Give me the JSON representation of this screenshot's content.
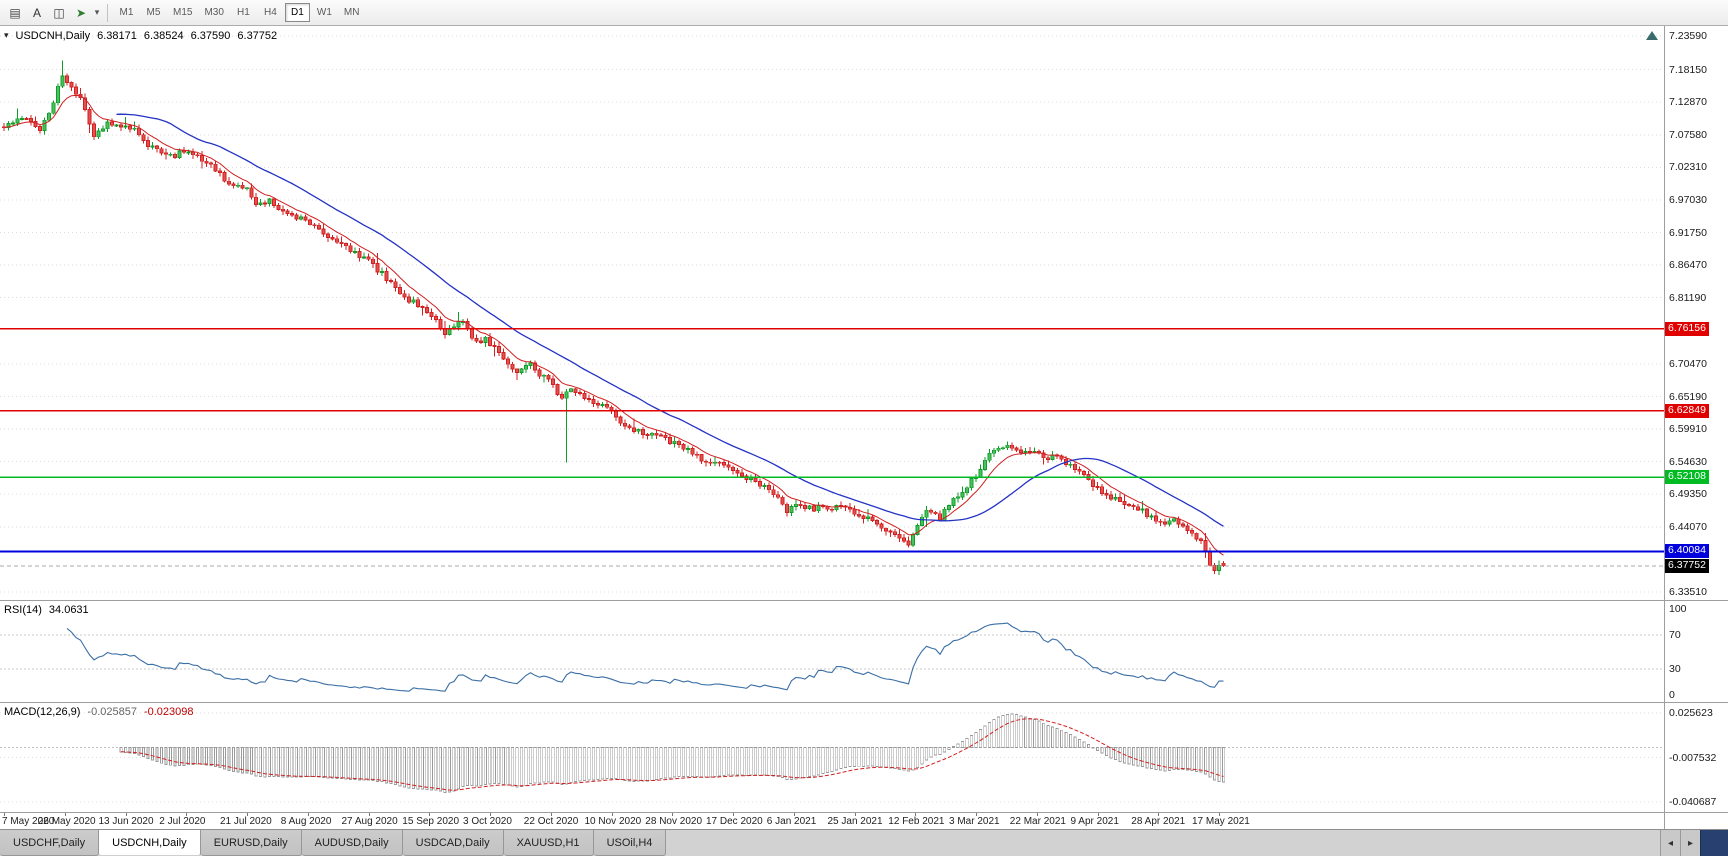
{
  "toolbar": {
    "icons": [
      {
        "name": "chart-list-icon",
        "glyph": "▤",
        "color": "#444444"
      },
      {
        "name": "text-tool-icon",
        "glyph": "A",
        "color": "#333333"
      },
      {
        "name": "template-icon",
        "glyph": "◫",
        "color": "#444444"
      },
      {
        "name": "cursor-tool-icon",
        "glyph": "➤",
        "color": "#2e7d32"
      }
    ],
    "dropdown_caret": "▾",
    "timeframes": [
      "M1",
      "M5",
      "M15",
      "M30",
      "H1",
      "H4",
      "D1",
      "W1",
      "MN"
    ],
    "active_timeframe": "D1"
  },
  "legend": {
    "caret": "▾",
    "symbol": "USDCNH,Daily",
    "open": "6.38171",
    "high": "6.38524",
    "low": "6.37590",
    "close": "6.37752"
  },
  "chart_data": {
    "type": "candlestick",
    "symbol": "USDCNH",
    "period": "Daily",
    "ylim": [
      6.3351,
      7.2359
    ],
    "y_ticks": [
      7.2359,
      7.1815,
      7.1287,
      7.0758,
      7.0231,
      6.9703,
      6.9175,
      6.8647,
      6.8119,
      6.7047,
      6.6519,
      6.5991,
      6.5463,
      6.4935,
      6.4407,
      6.3351
    ],
    "x_labels": [
      "7 May 2020",
      "26 May 2020",
      "13 Jun 2020",
      "2 Jul 2020",
      "21 Jul 2020",
      "8 Aug 2020",
      "27 Aug 2020",
      "15 Sep 2020",
      "3 Oct 2020",
      "22 Oct 2020",
      "10 Nov 2020",
      "28 Nov 2020",
      "17 Dec 2020",
      "6 Jan 2021",
      "25 Jan 2021",
      "12 Feb 2021",
      "3 Mar 2021",
      "22 Mar 2021",
      "9 Apr 2021",
      "28 Apr 2021",
      "17 May 2021"
    ],
    "num_candles": 272,
    "price_anchors": [
      [
        0,
        7.09
      ],
      [
        4,
        7.105
      ],
      [
        8,
        7.085
      ],
      [
        11,
        7.13
      ],
      [
        13,
        7.175
      ],
      [
        15,
        7.15
      ],
      [
        17,
        7.135
      ],
      [
        20,
        7.077
      ],
      [
        23,
        7.095
      ],
      [
        26,
        7.085
      ],
      [
        29,
        7.09
      ],
      [
        32,
        7.059
      ],
      [
        37,
        7.041
      ],
      [
        41,
        7.05
      ],
      [
        46,
        7.024
      ],
      [
        50,
        6.997
      ],
      [
        54,
        6.99
      ],
      [
        56,
        6.963
      ],
      [
        59,
        6.97
      ],
      [
        64,
        6.943
      ],
      [
        68,
        6.934
      ],
      [
        73,
        6.908
      ],
      [
        77,
        6.89
      ],
      [
        81,
        6.872
      ],
      [
        86,
        6.836
      ],
      [
        90,
        6.809
      ],
      [
        94,
        6.792
      ],
      [
        98,
        6.756
      ],
      [
        102,
        6.774
      ],
      [
        105,
        6.738
      ],
      [
        107,
        6.747
      ],
      [
        110,
        6.72
      ],
      [
        114,
        6.693
      ],
      [
        117,
        6.702
      ],
      [
        121,
        6.676
      ],
      [
        124,
        6.649
      ],
      [
        126,
        6.667
      ],
      [
        130,
        6.648
      ],
      [
        134,
        6.631
      ],
      [
        137,
        6.613
      ],
      [
        141,
        6.595
      ],
      [
        146,
        6.586
      ],
      [
        151,
        6.568
      ],
      [
        155,
        6.551
      ],
      [
        160,
        6.542
      ],
      [
        164,
        6.524
      ],
      [
        169,
        6.506
      ],
      [
        172,
        6.488
      ],
      [
        174,
        6.461
      ],
      [
        176,
        6.479
      ],
      [
        180,
        6.47
      ],
      [
        186,
        6.474
      ],
      [
        190,
        6.461
      ],
      [
        193,
        6.452
      ],
      [
        196,
        6.438
      ],
      [
        199,
        6.426
      ],
      [
        201,
        6.413
      ],
      [
        203,
        6.444
      ],
      [
        205,
        6.47
      ],
      [
        208,
        6.452
      ],
      [
        210,
        6.479
      ],
      [
        212,
        6.49
      ],
      [
        214,
        6.506
      ],
      [
        217,
        6.533
      ],
      [
        219,
        6.56
      ],
      [
        221,
        6.568
      ],
      [
        223,
        6.577
      ],
      [
        225,
        6.566
      ],
      [
        227,
        6.56
      ],
      [
        229,
        6.563
      ],
      [
        231,
        6.551
      ],
      [
        233,
        6.556
      ],
      [
        237,
        6.542
      ],
      [
        240,
        6.524
      ],
      [
        242,
        6.506
      ],
      [
        244,
        6.497
      ],
      [
        246,
        6.488
      ],
      [
        249,
        6.479
      ],
      [
        251,
        6.474
      ],
      [
        253,
        6.467
      ],
      [
        255,
        6.456
      ],
      [
        258,
        6.449
      ],
      [
        260,
        6.452
      ],
      [
        262,
        6.438
      ],
      [
        264,
        6.434
      ],
      [
        266,
        6.416
      ],
      [
        267,
        6.398
      ],
      [
        268,
        6.38
      ],
      [
        269,
        6.371
      ],
      [
        270,
        6.374
      ],
      [
        271,
        6.37752
      ]
    ],
    "special_wicks": [
      {
        "i": 13,
        "high": 7.196
      },
      {
        "i": 125,
        "low": 6.545
      }
    ],
    "last_candle": {
      "open": 6.38171,
      "high": 6.38524,
      "low": 6.3759,
      "close": 6.37752
    },
    "up_color": "#0f9d2a",
    "up_fill": "#4cc25f",
    "down_color": "#d22020",
    "down_fill": "#e35050",
    "ma_fast": {
      "type": "ema",
      "period": 8,
      "color": "#d02020"
    },
    "ma_slow": {
      "type": "sma",
      "period": 26,
      "color": "#2433c4"
    },
    "hlines": [
      {
        "value": 6.76156,
        "color": "#e00000",
        "label": "6.76156",
        "text": "#ffffff",
        "width": 1.6
      },
      {
        "value": 6.62849,
        "color": "#e00000",
        "label": "6.62849",
        "text": "#ffffff",
        "width": 1.6
      },
      {
        "value": 6.52108,
        "color": "#00bb22",
        "label": "6.52108",
        "text": "#ffffff",
        "width": 1.8
      },
      {
        "value": 6.40084,
        "color": "#0000dd",
        "label": "6.40084",
        "text": "#ffffff",
        "width": 2.2
      }
    ],
    "current_price": {
      "value": 6.37752,
      "label": "6.37752",
      "box": "#000000",
      "text": "#ffffff"
    },
    "indicators": {
      "rsi": {
        "label": "RSI(14)",
        "value": "34.0631",
        "period": 14,
        "levels": [
          30,
          70
        ],
        "scale": [
          100,
          70,
          30,
          0
        ],
        "range": [
          0,
          100
        ],
        "color": "#3a6ea5"
      },
      "macd": {
        "label": "MACD(12,26,9)",
        "fast": 12,
        "slow": 26,
        "signal": 9,
        "values": [
          "-0.025857",
          "-0.023098"
        ],
        "scale": [
          "0.025623",
          "-0.007532",
          "-0.040687"
        ],
        "range": [
          -0.040687,
          0.025623
        ],
        "hist_color": "#9a9a9a",
        "signal_color": "#d02020"
      }
    }
  },
  "tabs": {
    "items": [
      "USDCHF,Daily",
      "USDCNH,Daily",
      "EURUSD,Daily",
      "AUDUSD,Daily",
      "USDCAD,Daily",
      "XAUUSD,H1",
      "USOil,H4"
    ],
    "active_index": 1,
    "scroll_left_glyph": "◂",
    "scroll_right_glyph": "▸"
  }
}
